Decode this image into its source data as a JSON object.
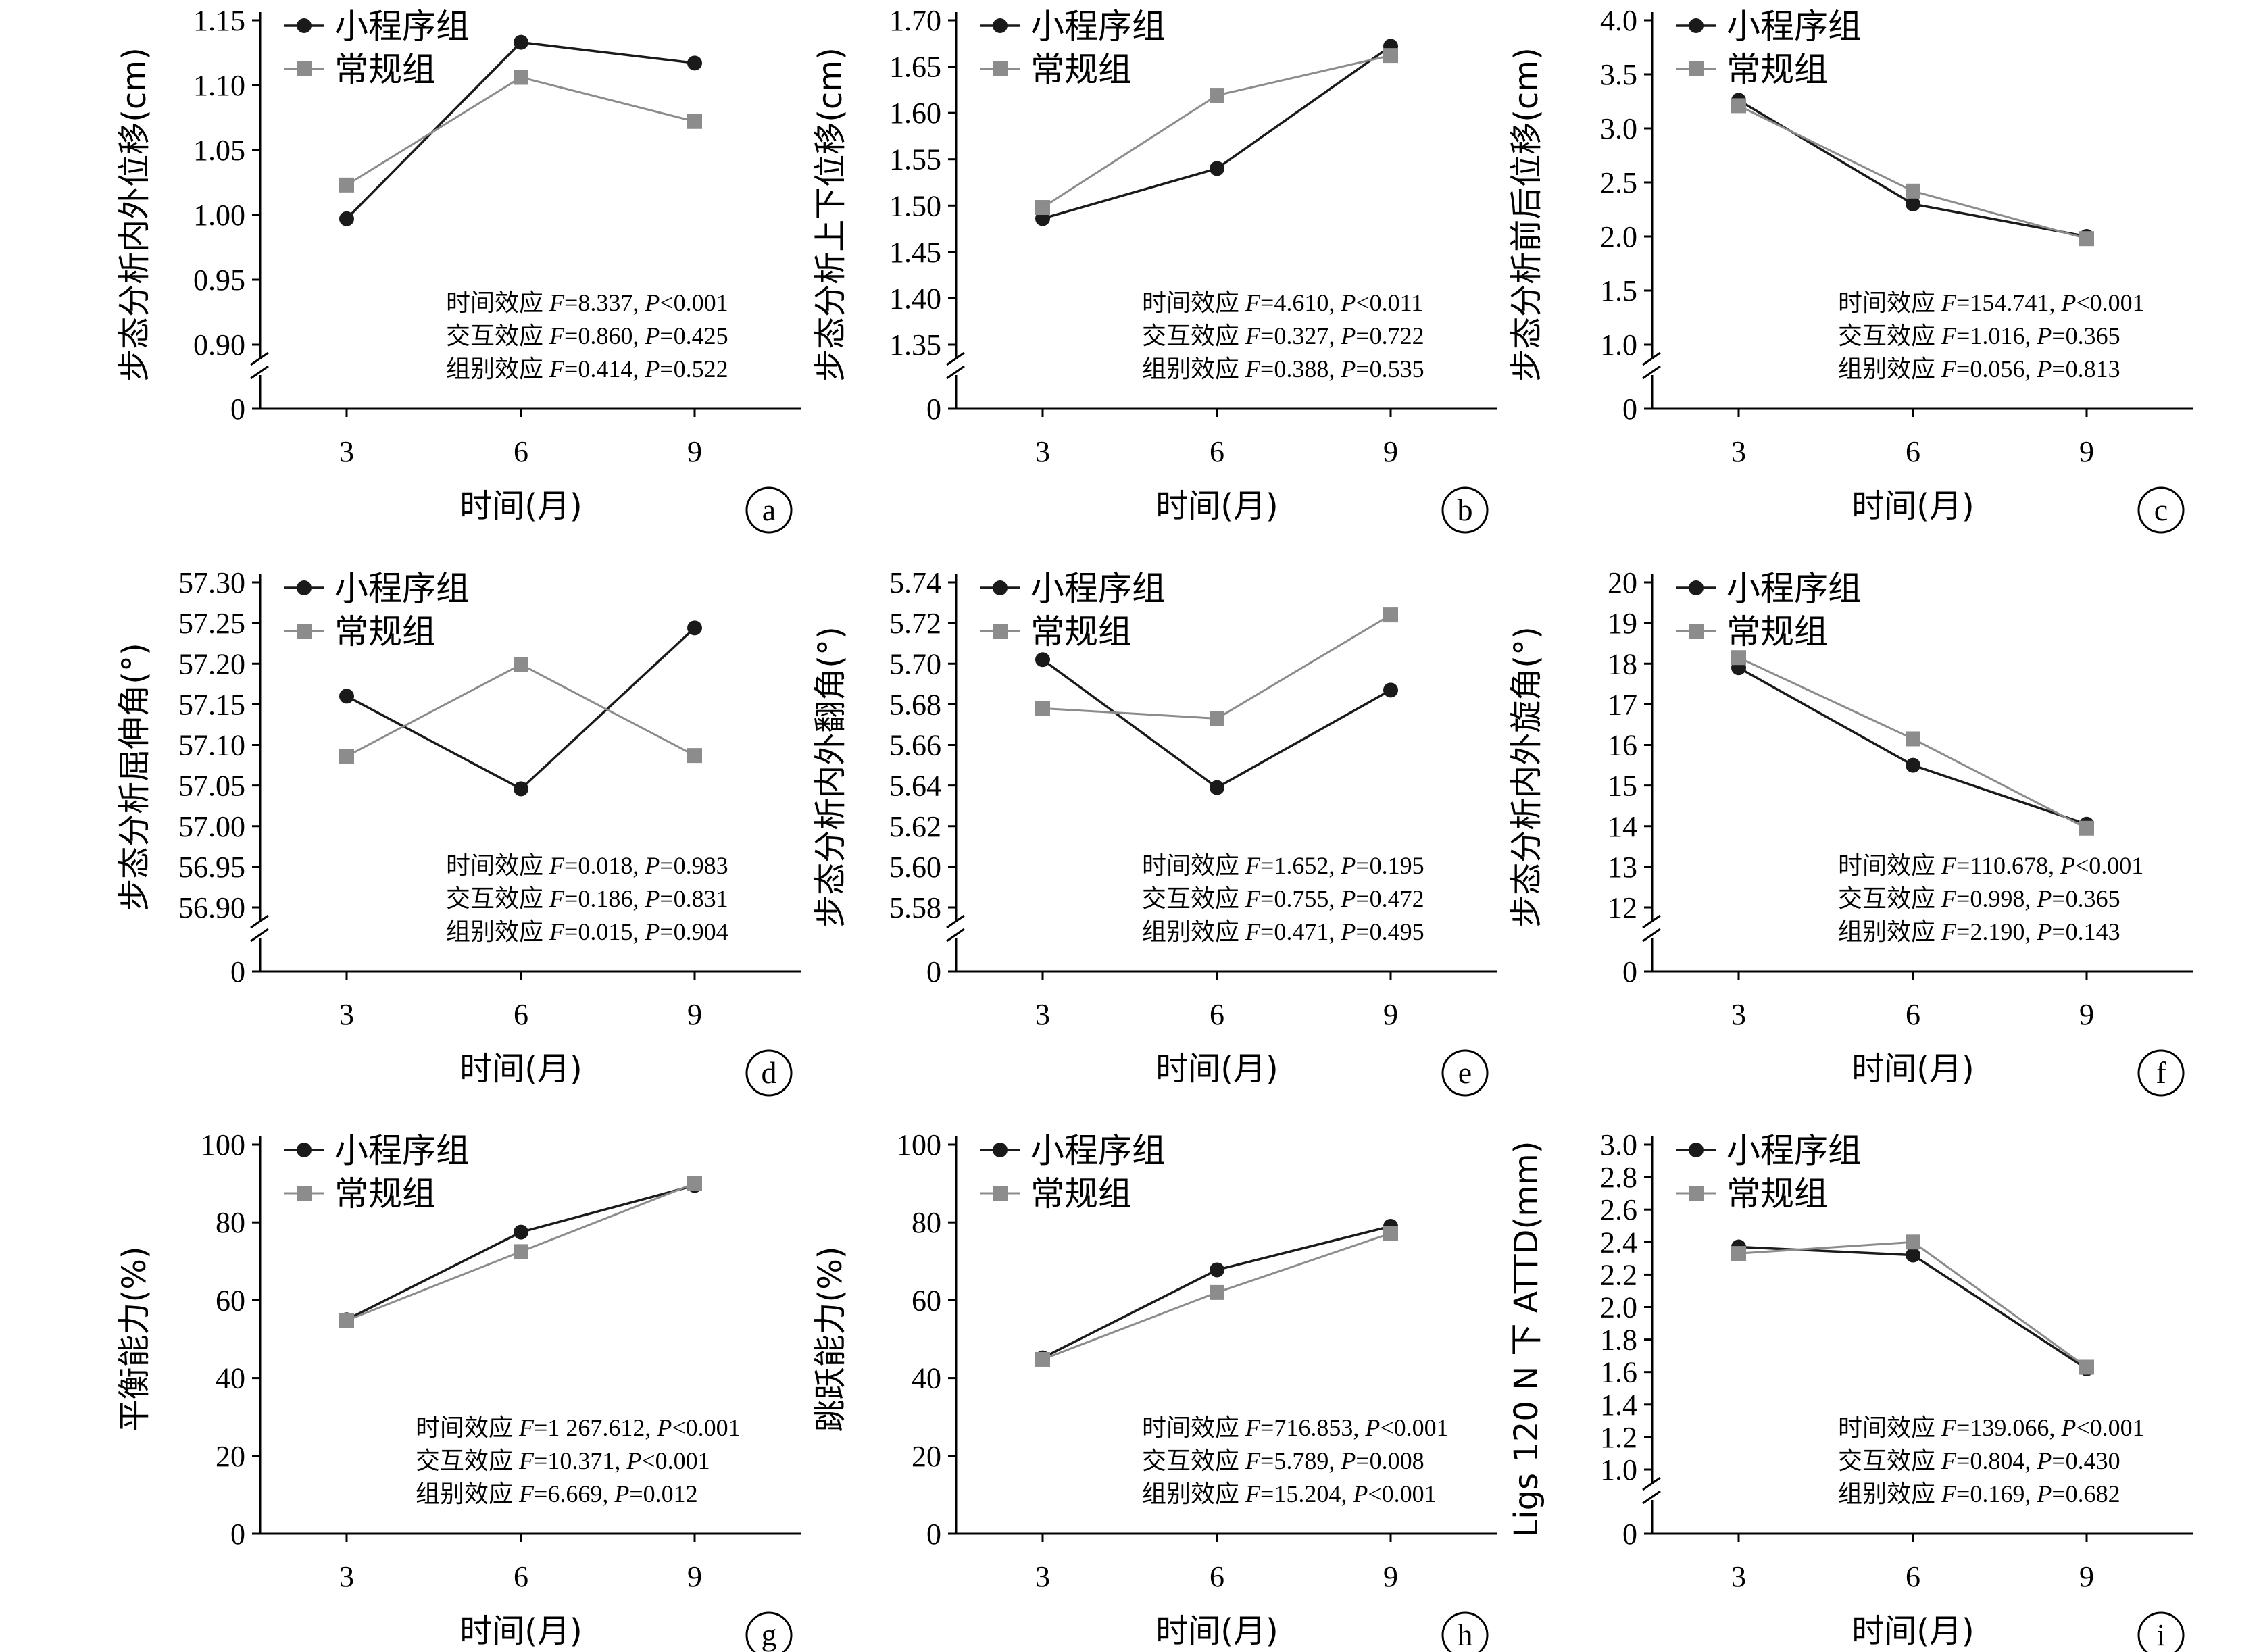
{
  "figure": {
    "x_axis_title": "时间(月)",
    "legend": [
      "小程序组",
      "常规组"
    ],
    "colors": {
      "app": "#1a1a1a",
      "routine": "#8c8c8c"
    },
    "markers": {
      "app": "circle",
      "routine": "square"
    }
  },
  "chart_data": [
    {
      "type": "line",
      "panel": "a",
      "ylabel": "步态分析内外位移(cm)",
      "x": [
        3,
        6,
        9
      ],
      "yticks": [
        "0.90",
        "0.95",
        "1.00",
        "1.05",
        "1.10",
        "1.15"
      ],
      "ylim": [
        0.9,
        1.15
      ],
      "axis_break": true,
      "series": [
        {
          "name": "小程序组",
          "values": [
            0.997,
            1.133,
            1.117
          ]
        },
        {
          "name": "常规组",
          "values": [
            1.023,
            1.106,
            1.072
          ]
        }
      ],
      "stats": [
        {
          "label": "时间效应",
          "F": "8.337",
          "P": "<0.001"
        },
        {
          "label": "交互效应",
          "F": "0.860",
          "P": "=0.425"
        },
        {
          "label": "组别效应",
          "F": "0.414",
          "P": "=0.522"
        }
      ]
    },
    {
      "type": "line",
      "panel": "b",
      "ylabel": "步态分析上下位移(cm)",
      "x": [
        3,
        6,
        9
      ],
      "yticks": [
        "1.35",
        "1.40",
        "1.45",
        "1.50",
        "1.55",
        "1.60",
        "1.65",
        "1.70"
      ],
      "ylim": [
        1.35,
        1.7
      ],
      "axis_break": true,
      "series": [
        {
          "name": "小程序组",
          "values": [
            1.486,
            1.54,
            1.672
          ]
        },
        {
          "name": "常规组",
          "values": [
            1.498,
            1.619,
            1.662
          ]
        }
      ],
      "stats": [
        {
          "label": "时间效应",
          "F": "4.610",
          "P": "<0.011"
        },
        {
          "label": "交互效应",
          "F": "0.327",
          "P": "=0.722"
        },
        {
          "label": "组别效应",
          "F": "0.388",
          "P": "=0.535"
        }
      ]
    },
    {
      "type": "line",
      "panel": "c",
      "ylabel": "步态分析前后位移(cm)",
      "x": [
        3,
        6,
        9
      ],
      "yticks": [
        "1.0",
        "1.5",
        "2.0",
        "2.5",
        "3.0",
        "3.5",
        "4.0"
      ],
      "ylim": [
        1.0,
        4.0
      ],
      "axis_break": true,
      "series": [
        {
          "name": "小程序组",
          "values": [
            3.26,
            2.3,
            2.0
          ]
        },
        {
          "name": "常规组",
          "values": [
            3.21,
            2.42,
            1.98
          ]
        }
      ],
      "stats": [
        {
          "label": "时间效应",
          "F": "154.741",
          "P": "<0.001"
        },
        {
          "label": "交互效应",
          "F": "1.016",
          "P": "=0.365"
        },
        {
          "label": "组别效应",
          "F": "0.056",
          "P": "=0.813"
        }
      ]
    },
    {
      "type": "line",
      "panel": "d",
      "ylabel": "步态分析屈伸角(°)",
      "x": [
        3,
        6,
        9
      ],
      "yticks": [
        "56.90",
        "56.95",
        "57.00",
        "57.05",
        "57.10",
        "57.15",
        "57.20",
        "57.25",
        "57.30"
      ],
      "ylim": [
        56.9,
        57.3
      ],
      "axis_break": true,
      "series": [
        {
          "name": "小程序组",
          "values": [
            57.16,
            57.046,
            57.244
          ]
        },
        {
          "name": "常规组",
          "values": [
            57.086,
            57.199,
            57.087
          ]
        }
      ],
      "stats": [
        {
          "label": "时间效应",
          "F": "0.018",
          "P": "=0.983"
        },
        {
          "label": "交互效应",
          "F": "0.186",
          "P": "=0.831"
        },
        {
          "label": "组别效应",
          "F": "0.015",
          "P": "=0.904"
        }
      ]
    },
    {
      "type": "line",
      "panel": "e",
      "ylabel": "步态分析内外翻角(°)",
      "x": [
        3,
        6,
        9
      ],
      "yticks": [
        "5.58",
        "5.60",
        "5.62",
        "5.64",
        "5.66",
        "5.68",
        "5.70",
        "5.72",
        "5.74"
      ],
      "ylim": [
        5.58,
        5.74
      ],
      "axis_break": true,
      "series": [
        {
          "name": "小程序组",
          "values": [
            5.702,
            5.639,
            5.687
          ]
        },
        {
          "name": "常规组",
          "values": [
            5.678,
            5.673,
            5.724
          ]
        }
      ],
      "stats": [
        {
          "label": "时间效应",
          "F": "1.652",
          "P": "=0.195"
        },
        {
          "label": "交互效应",
          "F": "0.755",
          "P": "=0.472"
        },
        {
          "label": "组别效应",
          "F": "0.471",
          "P": "=0.495"
        }
      ]
    },
    {
      "type": "line",
      "panel": "f",
      "ylabel": "步态分析内外旋角(°)",
      "x": [
        3,
        6,
        9
      ],
      "yticks": [
        "12",
        "13",
        "14",
        "15",
        "16",
        "17",
        "18",
        "19",
        "20"
      ],
      "ylim": [
        12,
        20
      ],
      "axis_break": true,
      "series": [
        {
          "name": "小程序组",
          "values": [
            17.9,
            15.5,
            14.05
          ]
        },
        {
          "name": "常规组",
          "values": [
            18.15,
            16.15,
            13.95
          ]
        }
      ],
      "stats": [
        {
          "label": "时间效应",
          "F": "110.678",
          "P": "<0.001"
        },
        {
          "label": "交互效应",
          "F": "0.998",
          "P": "=0.365"
        },
        {
          "label": "组别效应",
          "F": "2.190",
          "P": "=0.143"
        }
      ]
    },
    {
      "type": "line",
      "panel": "g",
      "ylabel": "平衡能力(%)",
      "x": [
        3,
        6,
        9
      ],
      "yticks": [
        "0",
        "20",
        "40",
        "60",
        "80",
        "100"
      ],
      "ylim": [
        0,
        100
      ],
      "axis_break": false,
      "series": [
        {
          "name": "小程序组",
          "values": [
            55.0,
            77.5,
            89.5
          ]
        },
        {
          "name": "常规组",
          "values": [
            54.8,
            72.5,
            90.0
          ]
        }
      ],
      "stats": [
        {
          "label": "时间效应",
          "F": "1 267.612",
          "P": "<0.001"
        },
        {
          "label": "交互效应",
          "F": "10.371",
          "P": "<0.001"
        },
        {
          "label": "组别效应",
          "F": "6.669",
          "P": "=0.012"
        }
      ]
    },
    {
      "type": "line",
      "panel": "h",
      "ylabel": "跳跃能力(%)",
      "x": [
        3,
        6,
        9
      ],
      "yticks": [
        "0",
        "20",
        "40",
        "60",
        "80",
        "100"
      ],
      "ylim": [
        0,
        100
      ],
      "axis_break": false,
      "series": [
        {
          "name": "小程序组",
          "values": [
            45.2,
            67.8,
            79.0
          ]
        },
        {
          "name": "常规组",
          "values": [
            44.8,
            62.0,
            77.2
          ]
        }
      ],
      "stats": [
        {
          "label": "时间效应",
          "F": "716.853",
          "P": "<0.001"
        },
        {
          "label": "交互效应",
          "F": "5.789",
          "P": "=0.008"
        },
        {
          "label": "组别效应",
          "F": "15.204",
          "P": "<0.001"
        }
      ]
    },
    {
      "type": "line",
      "panel": "i",
      "ylabel": "Ligs 120 N 下 ATTD(mm)",
      "x": [
        3,
        6,
        9
      ],
      "yticks": [
        "1.0",
        "1.2",
        "1.4",
        "1.6",
        "1.8",
        "2.0",
        "2.2",
        "2.4",
        "2.6",
        "2.8",
        "3.0"
      ],
      "ylim": [
        1.0,
        3.0
      ],
      "axis_break": true,
      "series": [
        {
          "name": "小程序组",
          "values": [
            2.37,
            2.32,
            1.62
          ]
        },
        {
          "name": "常规组",
          "values": [
            2.33,
            2.4,
            1.63
          ]
        }
      ],
      "stats": [
        {
          "label": "时间效应",
          "F": "139.066",
          "P": "<0.001"
        },
        {
          "label": "交互效应",
          "F": "0.804",
          "P": "=0.430"
        },
        {
          "label": "组别效应",
          "F": "0.169",
          "P": "=0.682"
        }
      ]
    }
  ]
}
